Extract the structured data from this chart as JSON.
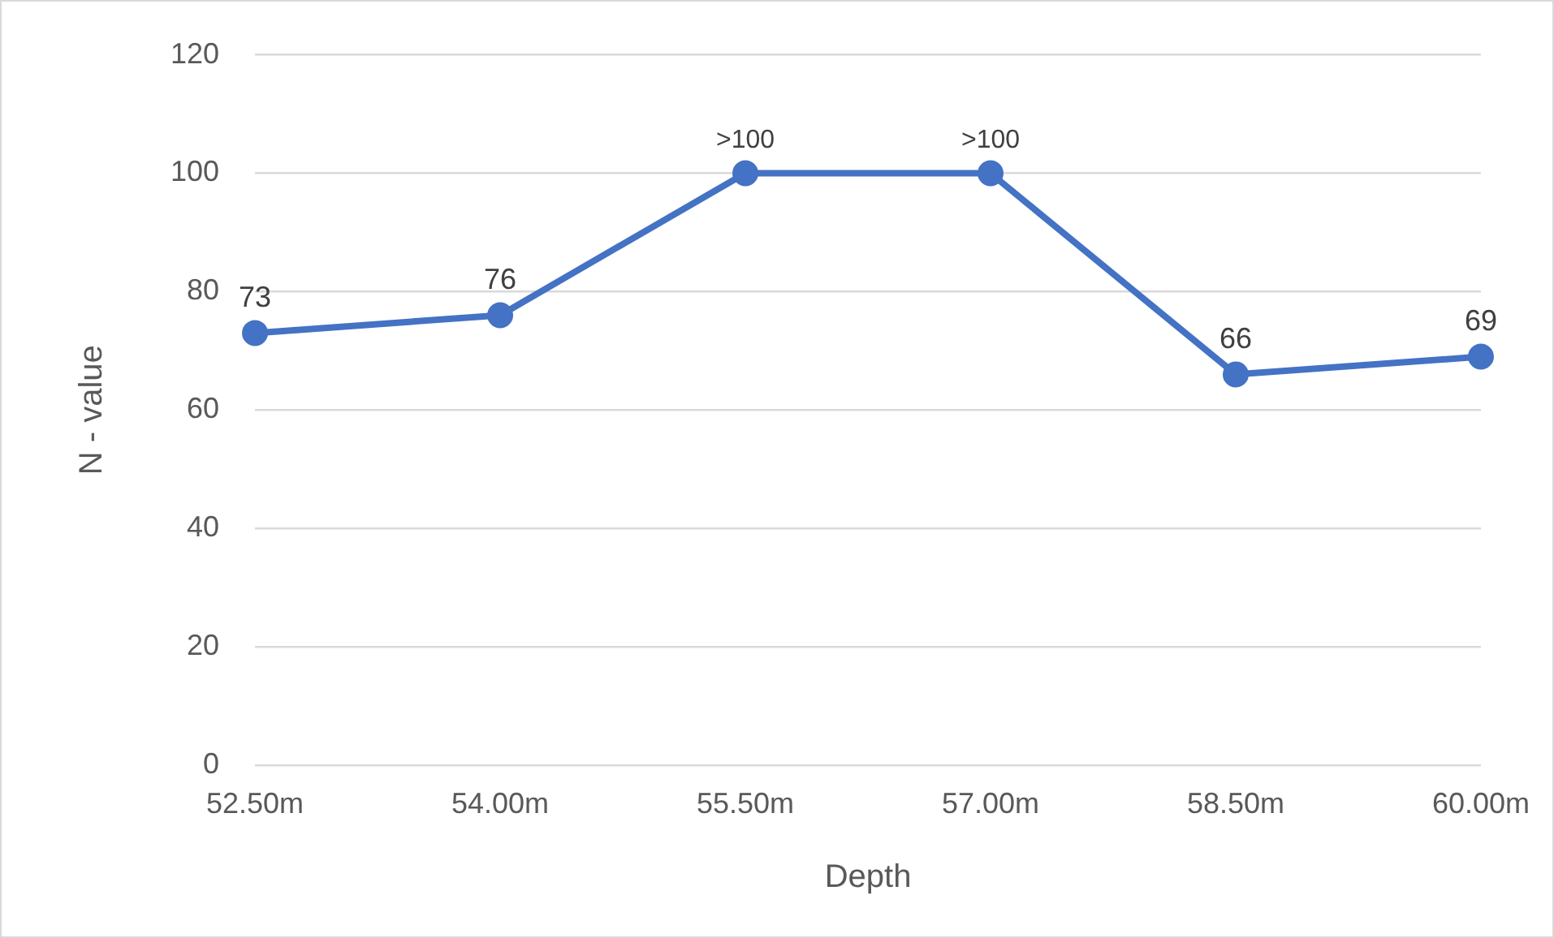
{
  "chart_data": {
    "type": "line",
    "xlabel": "Depth",
    "ylabel": "N - value",
    "categories": [
      "52.50m",
      "54.00m",
      "55.50m",
      "57.00m",
      "58.50m",
      "60.00m"
    ],
    "series": [
      {
        "color": "#4472c4",
        "values": [
          73,
          76,
          100,
          100,
          66,
          69
        ],
        "value_labels": [
          "73",
          "76",
          ">100",
          ">100",
          "66",
          "69"
        ]
      }
    ],
    "ylim": [
      0,
      120
    ],
    "yticks": [
      0,
      20,
      40,
      60,
      80,
      100,
      120
    ],
    "grid": "y",
    "legend": false,
    "marker": "circle",
    "line_style": "solid"
  }
}
